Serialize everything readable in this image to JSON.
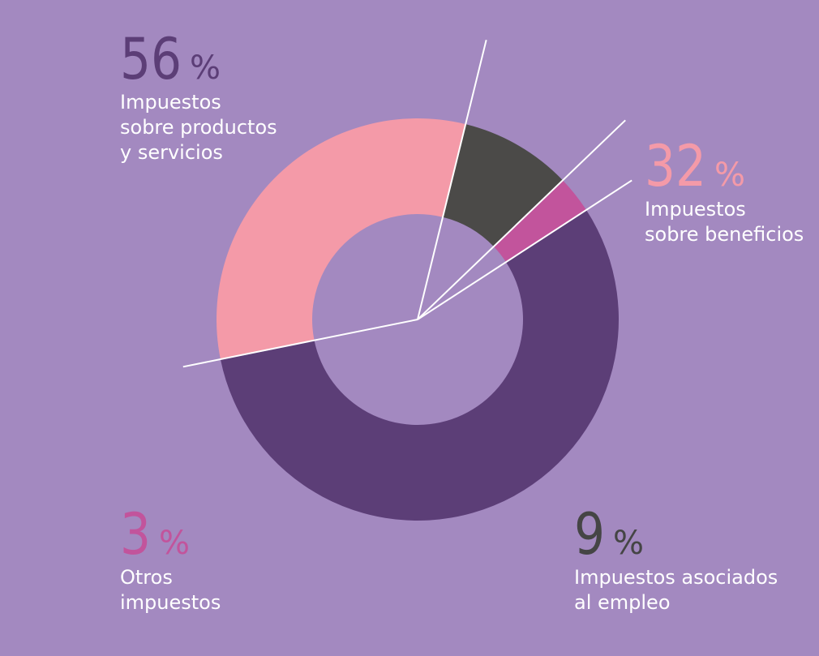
{
  "chart_data": {
    "type": "pie",
    "subtype": "donut",
    "title": "",
    "background_color": "#a389c0",
    "leader_line_color": "#ffffff",
    "slices": [
      {
        "value": 56,
        "value_text": "56",
        "unit": "%",
        "label_lines": [
          "Impuestos",
          "sobre productos",
          "y servicios"
        ],
        "color": "#5c3e77",
        "label_color": "#5c3e77"
      },
      {
        "value": 32,
        "value_text": "32",
        "unit": "%",
        "label_lines": [
          "Impuestos",
          "sobre beneficios"
        ],
        "color": "#f49aa8",
        "label_color": "#f49aa8"
      },
      {
        "value": 9,
        "value_text": "9",
        "unit": "%",
        "label_lines": [
          "Impuestos asociados",
          "al empleo"
        ],
        "color": "#4b4a48",
        "label_color": "#454545"
      },
      {
        "value": 3,
        "value_text": "3",
        "unit": "%",
        "label_lines": [
          "Otros",
          "impuestos"
        ],
        "color": "#c2549c",
        "label_color": "#c2549c"
      }
    ]
  }
}
